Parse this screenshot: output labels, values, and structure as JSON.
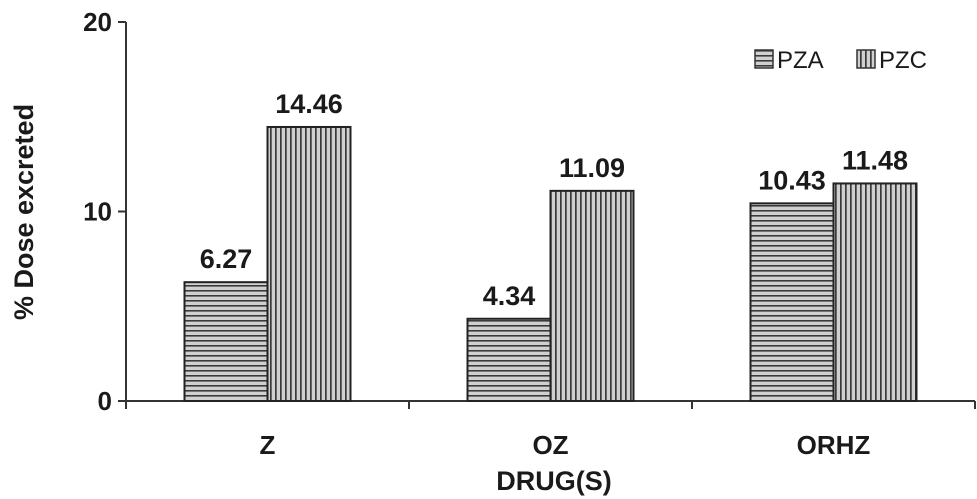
{
  "chart_data": {
    "type": "bar",
    "title": "",
    "xlabel": "DRUG(S)",
    "ylabel": "% Dose excreted",
    "categories": [
      "Z",
      "OZ",
      "ORHZ"
    ],
    "ylim": [
      0,
      20
    ],
    "yticks": [
      0,
      10,
      20
    ],
    "grid": false,
    "legend_position": "top-right",
    "series": [
      {
        "name": "PZA",
        "values": [
          6.27,
          4.34,
          10.43
        ],
        "labels": [
          "6.27",
          "4.34",
          "10.43"
        ],
        "pattern": "horizontal-stripes"
      },
      {
        "name": "PZC",
        "values": [
          14.46,
          11.09,
          11.48
        ],
        "labels": [
          "14.46",
          "11.09",
          "11.48"
        ],
        "pattern": "vertical-stripes"
      }
    ],
    "colors": {
      "bar_fill": "#d0d0d0",
      "stripe": "#3a3a3a",
      "axis": "#333333"
    }
  }
}
